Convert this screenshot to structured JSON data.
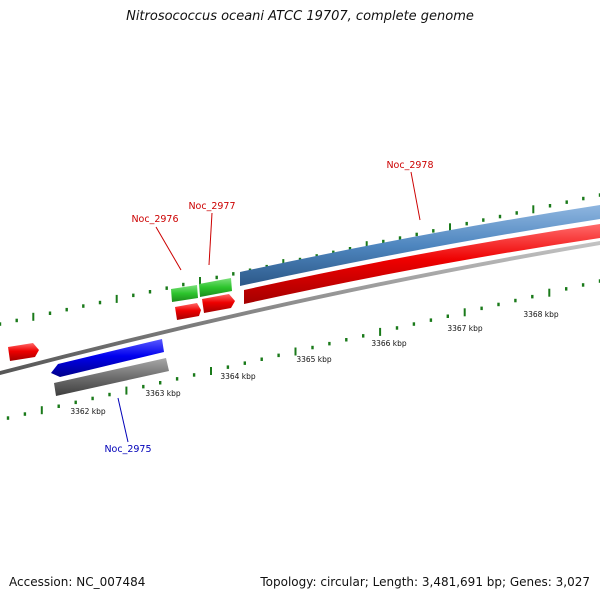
{
  "title": "Nitrosococcus oceani ATCC 19707, complete genome",
  "accession": "Accession: NC_007484",
  "stats": "Topology: circular; Length: 3,481,691 bp; Genes: 3,027",
  "colors": {
    "forward_cds": "#e8000b",
    "reverse_cds": "#0a0adf",
    "rna": "#3cb83c",
    "backbone": "#808080",
    "highlight": "#4e86bf",
    "ticks": "#1a7a1a",
    "gray_feature": "#6e6e6e"
  },
  "genes": [
    {
      "label": "Noc_2975",
      "color": "#0000b8"
    },
    {
      "label": "Noc_2976",
      "color": "#cc0000"
    },
    {
      "label": "Noc_2977",
      "color": "#cc0000"
    },
    {
      "label": "Noc_2978",
      "color": "#cc0000"
    }
  ],
  "scale_labels": [
    "3362 kbp",
    "3363 kbp",
    "3364 kbp",
    "3365 kbp",
    "3366 kbp",
    "3367 kbp",
    "3368 kbp"
  ]
}
